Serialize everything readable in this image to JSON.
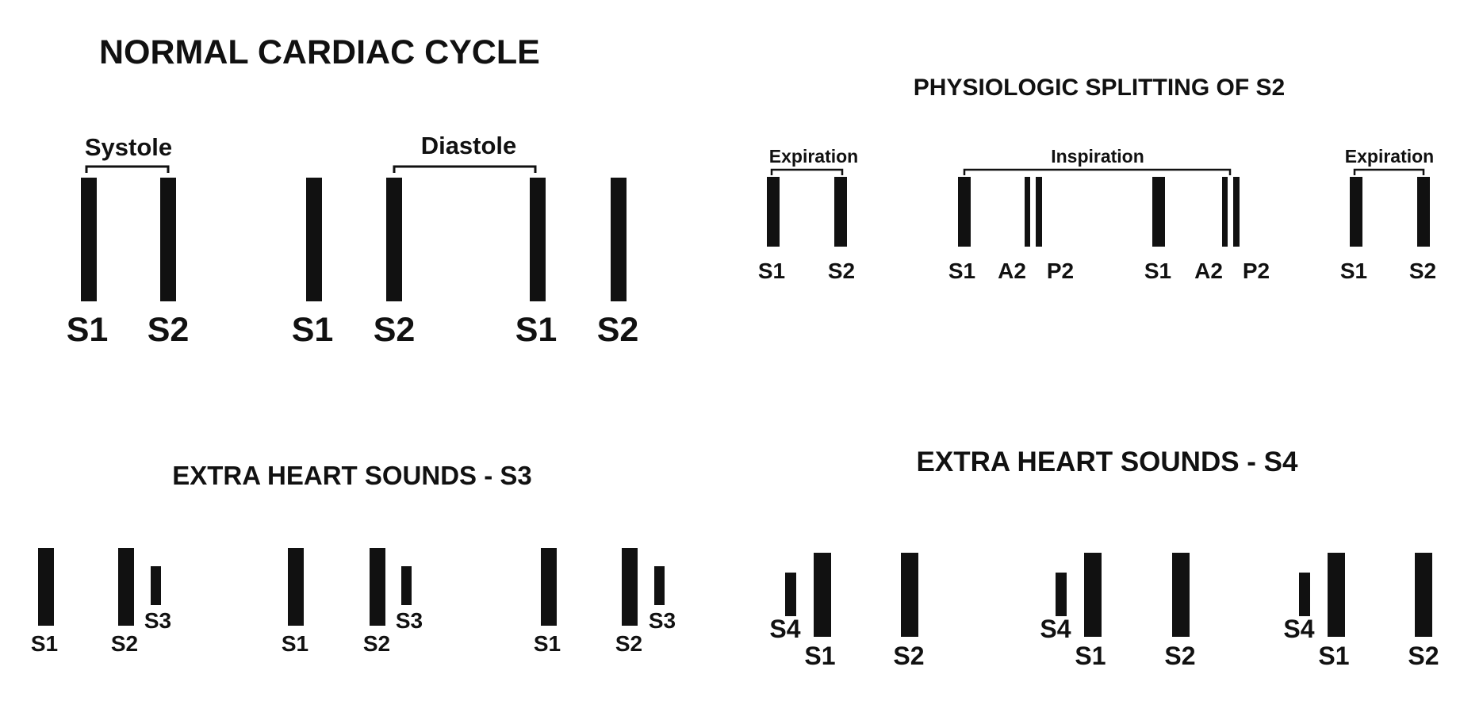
{
  "colors": {
    "ink": "#111111",
    "background": "#ffffff"
  },
  "normal": {
    "title": "NORMAL CARDIAC CYCLE",
    "systole": "Systole",
    "diastole": "Diastole",
    "labels": [
      "S1",
      "S2",
      "S1",
      "S2",
      "S1",
      "S2"
    ]
  },
  "split": {
    "title": "PHYSIOLOGIC SPLITTING OF S2",
    "expiration_1": "Expiration",
    "inspiration": "Inspiration",
    "expiration_2": "Expiration",
    "labels": [
      "S1",
      "S2",
      "S1",
      "A2",
      "P2",
      "S1",
      "A2",
      "P2",
      "S1",
      "S2"
    ]
  },
  "s3": {
    "title": "EXTRA HEART SOUNDS - S3",
    "groups": [
      {
        "s1": "S1",
        "s2": "S2",
        "s3": "S3"
      },
      {
        "s1": "S1",
        "s2": "S2",
        "s3": "S3"
      },
      {
        "s1": "S1",
        "s2": "S2",
        "s3": "S3"
      }
    ]
  },
  "s4": {
    "title": "EXTRA HEART SOUNDS - S4",
    "groups": [
      {
        "s4": "S4",
        "s1": "S1",
        "s2": "S2"
      },
      {
        "s4": "S4",
        "s1": "S1",
        "s2": "S2"
      },
      {
        "s4": "S4",
        "s1": "S1",
        "s2": "S2"
      }
    ]
  }
}
